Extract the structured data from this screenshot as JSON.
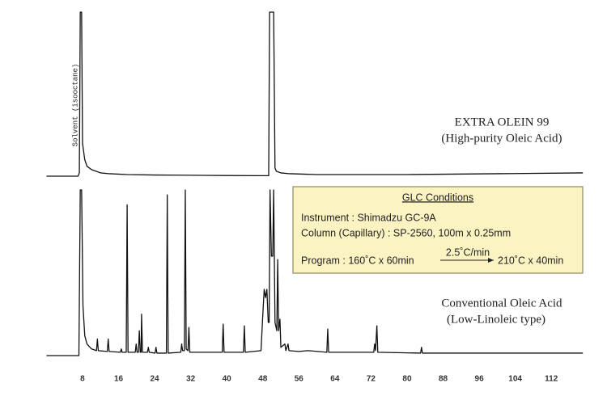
{
  "chart_data": [
    {
      "type": "line",
      "label": "EXTRA OLEIN 99",
      "sublabel": "(High-purity Oleic Acid)",
      "annotation": "Solvent (isooctane)",
      "color": "#111111",
      "xlim": [
        0,
        119
      ],
      "ylim": [
        0,
        100
      ],
      "x": [
        0,
        7.0,
        7.3,
        7.5,
        7.8,
        8.0,
        8.5,
        9,
        10,
        11,
        12,
        14,
        18,
        24,
        30,
        40,
        47,
        49.3,
        49.5,
        49.8,
        50.1,
        50.4,
        50.7,
        51,
        52,
        54,
        60,
        80,
        100,
        119
      ],
      "values": [
        0,
        0,
        2,
        100,
        100,
        20,
        10,
        6,
        4,
        3,
        2,
        1.5,
        1,
        0.7,
        0.6,
        0.4,
        0.3,
        0.3,
        100,
        100,
        100,
        100,
        5,
        3,
        2,
        1.5,
        1,
        1,
        1.5,
        2
      ]
    },
    {
      "type": "line",
      "label": "Conventional Oleic Acid",
      "sublabel": "(Low-Linoleic type)",
      "color": "#111111",
      "xlim": [
        0,
        119
      ],
      "ylim": [
        0,
        100
      ],
      "xticks": [
        8,
        16,
        24,
        32,
        40,
        48,
        56,
        64,
        72,
        80,
        88,
        96,
        104,
        112
      ],
      "x": [
        0,
        7.2,
        7.5,
        7.8,
        8.1,
        8.5,
        9,
        10,
        11.1,
        11.3,
        11.5,
        13.5,
        13.7,
        13.9,
        16.4,
        16.6,
        16.8,
        17.7,
        17.9,
        18.1,
        19.7,
        19.9,
        20.1,
        20.4,
        20.6,
        20.8,
        21.0,
        21.1,
        21.3,
        22.4,
        22.6,
        22.8,
        24.1,
        24.3,
        24.5,
        26.6,
        26.8,
        27.0,
        29.8,
        30,
        30.2,
        30.6,
        30.8,
        31,
        31.4,
        31.6,
        31.8,
        39.0,
        39.2,
        39.4,
        43.7,
        43.9,
        44.1,
        47.6,
        48.0,
        48.3,
        48.6,
        48.9,
        49.2,
        49.4,
        49.6,
        49.9,
        50.2,
        50.4,
        50.7,
        51.1,
        51.3,
        51.5,
        51.8,
        52.0,
        52.9,
        53.1,
        53.6,
        53.8,
        56,
        58,
        62.2,
        62.4,
        62.6,
        72.6,
        72.8,
        73.0,
        73.3,
        73.5,
        83.0,
        83.2,
        83.4,
        100,
        119
      ],
      "values": [
        0,
        0,
        100,
        100,
        30,
        12,
        7,
        4,
        3,
        10,
        3,
        2.5,
        10,
        2.5,
        2,
        4,
        2,
        2,
        91,
        2,
        2,
        7,
        2,
        2,
        15,
        2,
        2,
        25,
        2,
        2,
        5,
        2,
        1.5,
        5,
        1.5,
        1.5,
        97,
        1.5,
        2,
        7,
        3,
        3,
        100,
        4,
        3,
        17,
        2,
        2,
        19,
        2,
        2,
        18,
        2,
        3,
        25,
        40,
        35,
        40,
        20,
        20,
        100,
        60,
        60,
        100,
        20,
        15,
        58,
        15,
        22,
        5,
        7,
        3,
        7,
        3,
        2.5,
        3,
        2,
        16,
        2,
        2,
        7,
        3,
        18,
        2,
        1.5,
        5,
        1.5,
        1.5,
        1.5
      ],
      "glc_conditions": {
        "title": "GLC Conditions",
        "instrument": "Instrument : Shimadzu GC-9A",
        "column": "Column (Capillary) : SP-2560, 100m x 0.25mm",
        "program": "Program : 160˚C x 60min",
        "rate": "2.5˚C/min",
        "final": "210˚C x 40min"
      }
    }
  ]
}
